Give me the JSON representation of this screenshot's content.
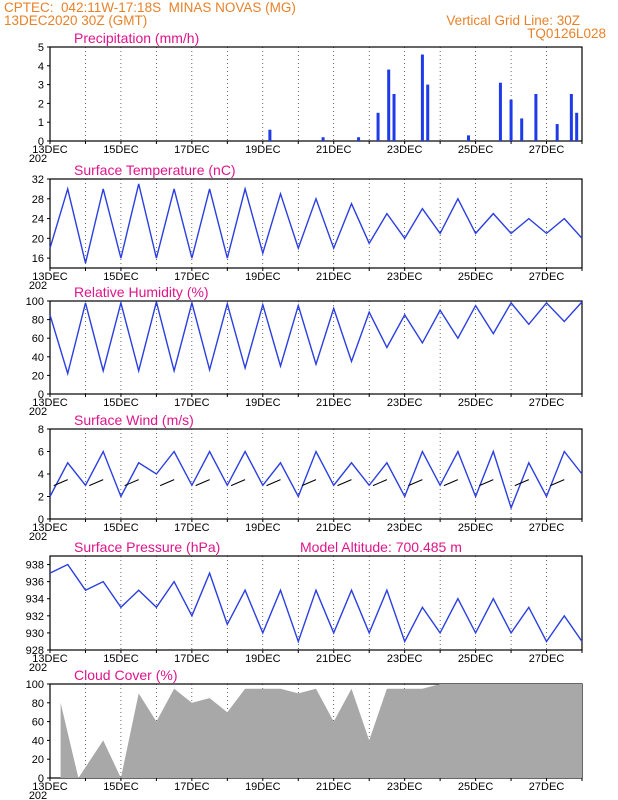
{
  "header": {
    "line1_left": "CPTEC:  042:11W-17:18S  MINAS NOVAS (MG)",
    "line2_left": "13DEC2020 30Z (GMT)",
    "line2_right": "Vertical Grid Line: 30Z",
    "line3_right": "TQ0126L028"
  },
  "colors": {
    "line": "#2b3fe0",
    "bar": "#1f3ae8",
    "cloud": "#a8a8a8",
    "title": "#e0158a",
    "header": "#e8822a",
    "wind_vector": "#000000"
  },
  "chart_data": [
    {
      "type": "bar",
      "title": "Precipitation (mm/h)",
      "ylim": [
        0,
        5
      ],
      "yticks": [
        0,
        1,
        2,
        3,
        4,
        5
      ],
      "x": [
        "19.2DEC",
        "20.7DEC",
        "21.7DEC",
        "22.25DEC",
        "22.55DEC",
        "22.7DEC",
        "23.5DEC",
        "23.65DEC",
        "24.8DEC",
        "25.7DEC",
        "26.0DEC",
        "26.3DEC",
        "26.7DEC",
        "27.3DEC",
        "27.7DEC",
        "27.85DEC"
      ],
      "values": [
        0.6,
        0.2,
        0.2,
        1.5,
        3.8,
        2.5,
        4.6,
        3.0,
        0.3,
        3.1,
        2.2,
        1.2,
        2.5,
        0.9,
        2.5,
        1.5
      ]
    },
    {
      "type": "line",
      "title": "Surface Temperature (nC)",
      "ylim": [
        14,
        32
      ],
      "yticks": [
        16,
        20,
        24,
        28,
        32
      ],
      "x": [
        "13.0",
        "13.5",
        "14.0",
        "14.5",
        "15.0",
        "15.5",
        "16.0",
        "16.5",
        "17.0",
        "17.5",
        "18.0",
        "18.5",
        "19.0",
        "19.5",
        "20.0",
        "20.5",
        "21.0",
        "21.5",
        "22.0",
        "22.5",
        "23.0",
        "23.5",
        "24.0",
        "24.5",
        "25.0",
        "25.5",
        "26.0",
        "26.5",
        "27.0",
        "27.5",
        "28.0"
      ],
      "values": [
        18,
        30,
        15,
        30,
        16,
        31,
        16,
        30,
        16,
        30,
        16,
        30,
        17,
        29,
        18,
        28,
        18,
        27,
        19,
        25,
        20,
        26,
        21,
        28,
        21,
        25,
        21,
        24,
        21,
        24,
        20
      ]
    },
    {
      "type": "line",
      "title": "Relative Humidity (%)",
      "ylim": [
        0,
        100
      ],
      "yticks": [
        0,
        20,
        40,
        60,
        80,
        100
      ],
      "x": [
        "13.0",
        "13.5",
        "14.0",
        "14.5",
        "15.0",
        "15.5",
        "16.0",
        "16.5",
        "17.0",
        "17.5",
        "18.0",
        "18.5",
        "19.0",
        "19.5",
        "20.0",
        "20.5",
        "21.0",
        "21.5",
        "22.0",
        "22.5",
        "23.0",
        "23.5",
        "24.0",
        "24.5",
        "25.0",
        "25.5",
        "26.0",
        "26.5",
        "27.0",
        "27.5",
        "28.0"
      ],
      "values": [
        85,
        22,
        98,
        25,
        98,
        25,
        99,
        25,
        98,
        26,
        97,
        28,
        96,
        30,
        95,
        32,
        92,
        35,
        88,
        50,
        85,
        55,
        90,
        60,
        95,
        65,
        98,
        75,
        98,
        78,
        99
      ]
    },
    {
      "type": "line",
      "title": "Surface Wind (m/s)",
      "ylim": [
        0,
        8
      ],
      "yticks": [
        0,
        2,
        4,
        6,
        8
      ],
      "x": [
        "13.0",
        "13.5",
        "14.0",
        "14.5",
        "15.0",
        "15.5",
        "16.0",
        "16.5",
        "17.0",
        "17.5",
        "18.0",
        "18.5",
        "19.0",
        "19.5",
        "20.0",
        "20.5",
        "21.0",
        "21.5",
        "22.0",
        "22.5",
        "23.0",
        "23.5",
        "24.0",
        "24.5",
        "25.0",
        "25.5",
        "26.0",
        "26.5",
        "27.0",
        "27.5",
        "28.0"
      ],
      "values": [
        2,
        5,
        3,
        6,
        2,
        5,
        4,
        6,
        3,
        6,
        3,
        6,
        3,
        5,
        2,
        6,
        3,
        5,
        3,
        5,
        2,
        6,
        3,
        6,
        2,
        6,
        1,
        5,
        2,
        6,
        4
      ]
    },
    {
      "type": "line",
      "title": "Surface Pressure (hPa)",
      "annotation": "Model Altitude: 700.485 m",
      "ylim": [
        928,
        939
      ],
      "yticks": [
        928,
        930,
        932,
        934,
        936,
        938
      ],
      "x": [
        "13.0",
        "13.5",
        "14.0",
        "14.5",
        "15.0",
        "15.5",
        "16.0",
        "16.5",
        "17.0",
        "17.5",
        "18.0",
        "18.5",
        "19.0",
        "19.5",
        "20.0",
        "20.5",
        "21.0",
        "21.5",
        "22.0",
        "22.5",
        "23.0",
        "23.5",
        "24.0",
        "24.5",
        "25.0",
        "25.5",
        "26.0",
        "26.5",
        "27.0",
        "27.5",
        "28.0"
      ],
      "values": [
        937,
        938,
        935,
        936,
        933,
        935,
        933,
        936,
        932,
        937,
        931,
        935,
        930,
        935,
        929,
        935,
        930,
        935,
        930,
        935,
        929,
        933,
        930,
        934,
        930,
        934,
        930,
        933,
        929,
        932,
        929
      ]
    },
    {
      "type": "area",
      "title": "Cloud Cover (%)",
      "ylim": [
        0,
        100
      ],
      "yticks": [
        0,
        20,
        40,
        60,
        80,
        100
      ],
      "x": [
        "13.3",
        "13.8",
        "14.5",
        "15.0",
        "15.5",
        "16.0",
        "16.5",
        "17.0",
        "17.5",
        "18.0",
        "18.5",
        "19.0",
        "19.5",
        "20.0",
        "20.5",
        "21.0",
        "21.5",
        "22.0",
        "22.5",
        "23.0",
        "23.5",
        "24.0",
        "24.5",
        "25.0",
        "25.5",
        "26.0",
        "26.5",
        "27.0",
        "27.5",
        "28.0"
      ],
      "values": [
        80,
        0,
        40,
        0,
        90,
        60,
        95,
        80,
        85,
        70,
        95,
        95,
        95,
        90,
        95,
        60,
        95,
        40,
        95,
        95,
        95,
        100,
        100,
        100,
        100,
        100,
        100,
        100,
        100,
        100
      ]
    }
  ],
  "x_axis": {
    "ticks": [
      "13DEC",
      "15DEC",
      "17DEC",
      "19DEC",
      "21DEC",
      "23DEC",
      "25DEC",
      "27DEC"
    ],
    "fragment": "202"
  }
}
